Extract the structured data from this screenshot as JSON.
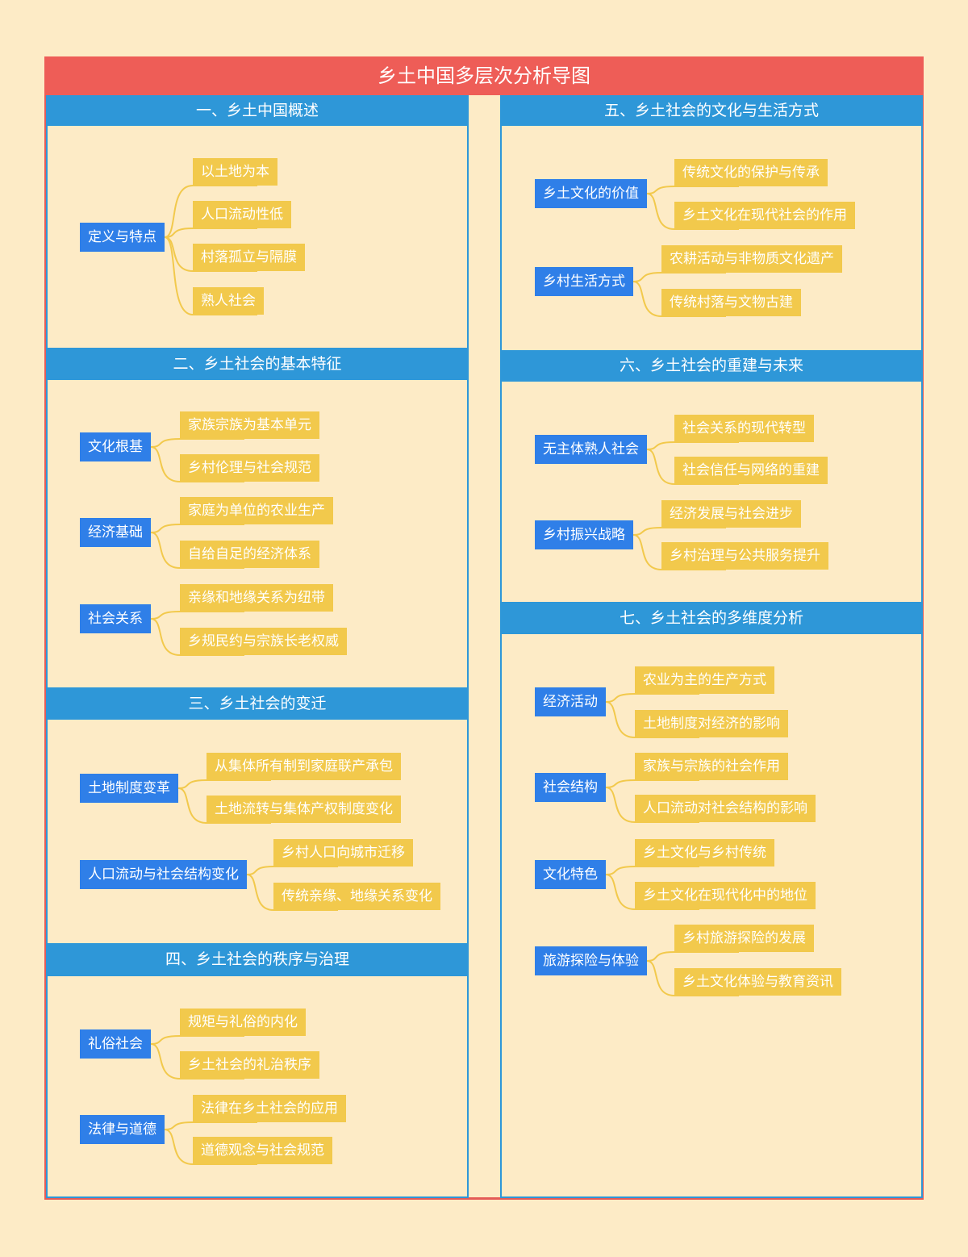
{
  "title": "乡土中国多层次分析导图",
  "sections": [
    {
      "title": "一、乡土中国概述",
      "groups": [
        {
          "label": "定义与特点",
          "items": [
            "以土地为本",
            "人口流动性低",
            "村落孤立与隔膜",
            "熟人社会"
          ]
        }
      ]
    },
    {
      "title": "二、乡土社会的基本特征",
      "groups": [
        {
          "label": "文化根基",
          "items": [
            "家族宗族为基本单元",
            "乡村伦理与社会规范"
          ]
        },
        {
          "label": "经济基础",
          "items": [
            "家庭为单位的农业生产",
            "自给自足的经济体系"
          ]
        },
        {
          "label": "社会关系",
          "items": [
            "亲缘和地缘关系为纽带",
            "乡规民约与宗族长老权威"
          ]
        }
      ]
    },
    {
      "title": "三、乡土社会的变迁",
      "groups": [
        {
          "label": "土地制度变革",
          "items": [
            "从集体所有制到家庭联产承包",
            "土地流转与集体产权制度变化"
          ]
        },
        {
          "label": "人口流动与社会结构变化",
          "items": [
            "乡村人口向城市迁移",
            "传统亲缘、地缘关系变化"
          ]
        }
      ]
    },
    {
      "title": "四、乡土社会的秩序与治理",
      "groups": [
        {
          "label": "礼俗社会",
          "items": [
            "规矩与礼俗的内化",
            "乡土社会的礼治秩序"
          ]
        },
        {
          "label": "法律与道德",
          "items": [
            "法律在乡土社会的应用",
            "道德观念与社会规范"
          ]
        }
      ]
    },
    {
      "title": "五、乡土社会的文化与生活方式",
      "groups": [
        {
          "label": "乡土文化的价值",
          "items": [
            "传统文化的保护与传承",
            "乡土文化在现代社会的作用"
          ]
        },
        {
          "label": "乡村生活方式",
          "items": [
            "农耕活动与非物质文化遗产",
            "传统村落与文物古建"
          ]
        }
      ]
    },
    {
      "title": "六、乡土社会的重建与未来",
      "groups": [
        {
          "label": "无主体熟人社会",
          "items": [
            "社会关系的现代转型",
            "社会信任与网络的重建"
          ]
        },
        {
          "label": "乡村振兴战略",
          "items": [
            "经济发展与社会进步",
            "乡村治理与公共服务提升"
          ]
        }
      ]
    },
    {
      "title": "七、乡土社会的多维度分析",
      "groups": [
        {
          "label": "经济活动",
          "items": [
            "农业为主的生产方式",
            "土地制度对经济的影响"
          ]
        },
        {
          "label": "社会结构",
          "items": [
            "家族与宗族的社会作用",
            "人口流动对社会结构的影响"
          ]
        },
        {
          "label": "文化特色",
          "items": [
            "乡土文化与乡村传统",
            "乡土文化在现代化中的地位"
          ]
        },
        {
          "label": "旅游探险与体验",
          "items": [
            "乡村旅游探险的发展",
            "乡土文化体验与教育资讯"
          ]
        }
      ]
    }
  ]
}
